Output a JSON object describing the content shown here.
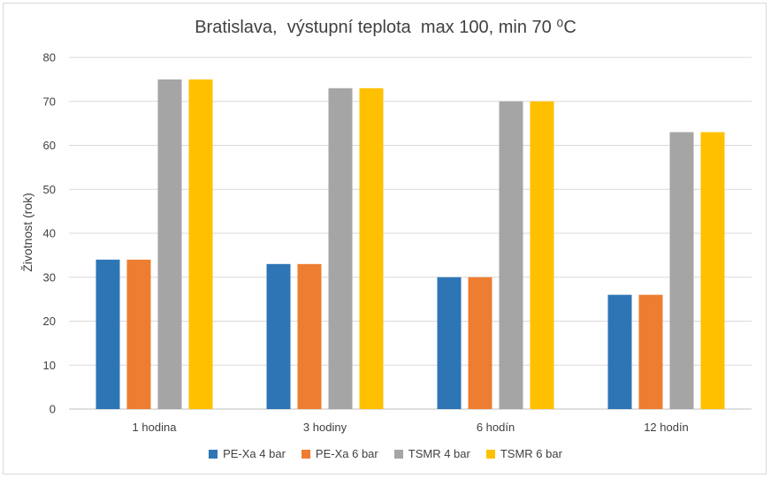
{
  "chart_data": {
    "type": "bar",
    "title": "Bratislava,  výstupní teplota  max 100, min 70 ⁰C",
    "xlabel": "",
    "ylabel": "Životnost (rok)",
    "ylim": [
      0,
      80
    ],
    "yticks": [
      0,
      10,
      20,
      30,
      40,
      50,
      60,
      70,
      80
    ],
    "grid": true,
    "legend_position": "bottom",
    "categories": [
      "1 hodina",
      "3 hodiny",
      "6 hodín",
      "12 hodín"
    ],
    "series": [
      {
        "name": "PE-Xa 4 bar",
        "color": "#2E75B6",
        "values": [
          34,
          33,
          30,
          26
        ]
      },
      {
        "name": "PE-Xa 6 bar",
        "color": "#ED7D31",
        "values": [
          34,
          33,
          30,
          26
        ]
      },
      {
        "name": "TSMR 4 bar",
        "color": "#A5A5A5",
        "values": [
          75,
          73,
          70,
          63
        ]
      },
      {
        "name": "TSMR 6 bar",
        "color": "#FFC000",
        "values": [
          75,
          73,
          70,
          63
        ]
      }
    ]
  }
}
